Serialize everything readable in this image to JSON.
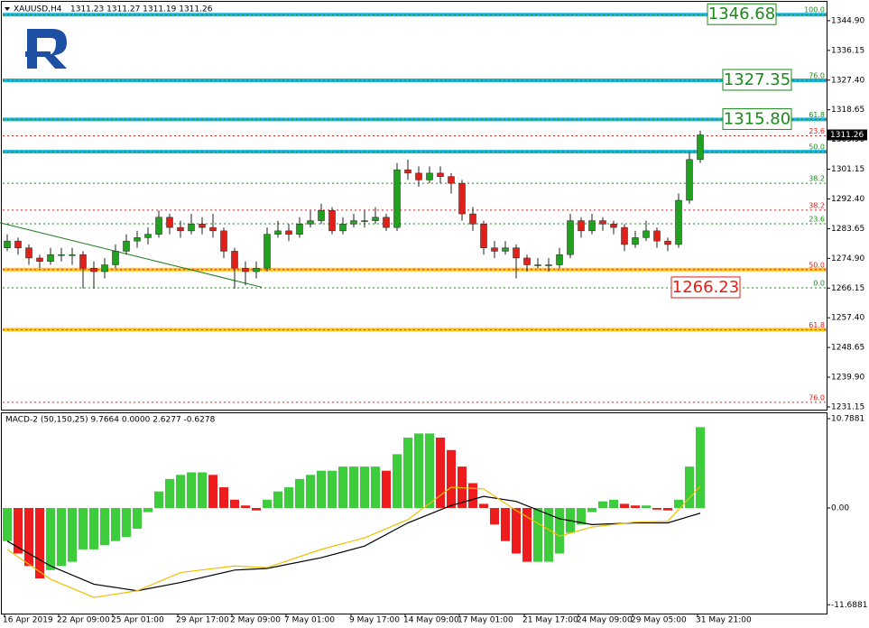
{
  "chart_data": [
    {
      "type": "candlestick",
      "title": "XAUUSD,H4",
      "subtitle": "1311.23 1311.27 1311.19 1311.26",
      "open": [
        1278,
        1280,
        1278,
        1275,
        1274,
        1276,
        1276,
        1276,
        1272,
        1271,
        1273,
        1277,
        1280,
        1281,
        1282,
        1287,
        1284,
        1283,
        1285,
        1284,
        1283,
        1277,
        1272,
        1271,
        1272,
        1282,
        1283,
        1282,
        1285,
        1286,
        1289,
        1283,
        1285,
        1286,
        1286,
        1287,
        1284,
        1301,
        1300,
        1298,
        1300,
        1299,
        1297,
        1288,
        1285,
        1278,
        1277,
        1278,
        1275,
        1273,
        1273,
        1273,
        1276,
        1286,
        1283,
        1286,
        1285,
        1284,
        1279,
        1281,
        1283,
        1280,
        1279,
        1292,
        1304
      ],
      "high": [
        1282,
        1281,
        1279,
        1276,
        1278,
        1278,
        1278,
        1277,
        1274,
        1275,
        1279,
        1282,
        1283,
        1284,
        1289,
        1288,
        1286,
        1288,
        1287,
        1288,
        1284,
        1278,
        1274,
        1274,
        1284,
        1286,
        1285,
        1287,
        1289,
        1291,
        1290,
        1287,
        1288,
        1289,
        1290,
        1288,
        1303,
        1304,
        1302,
        1302,
        1302,
        1300,
        1298,
        1290,
        1286,
        1280,
        1280,
        1279,
        1276,
        1275,
        1275,
        1278,
        1288,
        1287,
        1288,
        1287,
        1286,
        1285,
        1283,
        1286,
        1284,
        1281,
        1294,
        1306,
        1312.5
      ],
      "low": [
        1277,
        1276,
        1273,
        1272,
        1273,
        1274,
        1273,
        1266,
        1266,
        1269,
        1272,
        1276,
        1278,
        1279,
        1281,
        1282,
        1281,
        1282,
        1282,
        1281,
        1275,
        1266,
        1267,
        1269,
        1271,
        1281,
        1280,
        1281,
        1284,
        1285,
        1282,
        1282,
        1284,
        1284,
        1285,
        1283,
        1283,
        1298,
        1296,
        1297,
        1297,
        1294,
        1286,
        1283,
        1276,
        1275,
        1276,
        1269,
        1271,
        1272,
        1271,
        1272,
        1275,
        1281,
        1282,
        1283,
        1282,
        1277,
        1278,
        1280,
        1278,
        1277,
        1278,
        1291,
        1303
      ],
      "close": [
        1280,
        1278,
        1275,
        1274,
        1276,
        1276,
        1276,
        1272,
        1271,
        1273,
        1277,
        1280,
        1281,
        1282,
        1287,
        1284,
        1283,
        1285,
        1284,
        1283,
        1277,
        1272,
        1271,
        1272,
        1282,
        1283,
        1282,
        1285,
        1286,
        1289,
        1283,
        1285,
        1286,
        1286,
        1287,
        1284,
        1301,
        1300,
        1298,
        1300,
        1299,
        1297,
        1288,
        1285,
        1278,
        1277,
        1278,
        1275,
        1273,
        1273,
        1273,
        1276,
        1286,
        1283,
        1286,
        1285,
        1284,
        1279,
        1281,
        1283,
        1280,
        1279,
        1292,
        1304,
        1311.26
      ],
      "up_color": "#1fa31f",
      "down_color": "#e0201a",
      "ylim": [
        1230.08,
        1350.46
      ],
      "yticks": [
        {
          "value": 1344.9,
          "label": "1344.90"
        },
        {
          "value": 1336.15,
          "label": "1336.15"
        },
        {
          "value": 1327.4,
          "label": "1327.40"
        },
        {
          "value": 1318.65,
          "label": "1318.65"
        },
        {
          "value": 1309.9,
          "label": "1309.90"
        },
        {
          "value": 1301.15,
          "label": "1301.15"
        },
        {
          "value": 1292.4,
          "label": "1292.40"
        },
        {
          "value": 1283.65,
          "label": "1283.65"
        },
        {
          "value": 1274.9,
          "label": "1274.90"
        },
        {
          "value": 1266.15,
          "label": "1266.15"
        },
        {
          "value": 1257.4,
          "label": "1257.40"
        },
        {
          "value": 1248.65,
          "label": "1248.65"
        },
        {
          "value": 1239.9,
          "label": "1239.90"
        },
        {
          "value": 1231.15,
          "label": "1231.15"
        }
      ],
      "levels": [
        {
          "label": "100.0",
          "value": 1346.68,
          "color": "#1a8a1a"
        },
        {
          "label": "76.0",
          "value": 1327.35,
          "color": "#1a8a1a"
        },
        {
          "label": "61.8",
          "value": 1315.8,
          "color": "#1a8a1a"
        },
        {
          "label": "50.0",
          "value": 1306.3,
          "color": "#1a8a1a"
        },
        {
          "label": "38.2",
          "value": 1297.0,
          "color": "#1a8a1a"
        },
        {
          "label": "23.6",
          "value": 1285.1,
          "color": "#1a8a1a"
        },
        {
          "label": "0.0",
          "value": 1266.23,
          "color": "#1a8a1a"
        },
        {
          "label": "23.6",
          "value": 1311.0,
          "color": "#e0201a"
        },
        {
          "label": "38.2",
          "value": 1289.1,
          "color": "#e0201a"
        },
        {
          "label": "50.0",
          "value": 1271.6,
          "color": "#e0201a"
        },
        {
          "label": "61.8",
          "value": 1253.9,
          "color": "#e0201a"
        },
        {
          "label": "76.0",
          "value": 1232.5,
          "color": "#e0201a"
        }
      ],
      "bands": [
        {
          "value": 1346.68,
          "color": "#19b4e6"
        },
        {
          "value": 1327.35,
          "color": "#19b4e6"
        },
        {
          "value": 1315.8,
          "color": "#19b4e6"
        },
        {
          "value": 1306.3,
          "color": "#19b4e6"
        },
        {
          "value": 1271.6,
          "color": "#ffc61a"
        },
        {
          "value": 1253.9,
          "color": "#ffc61a"
        }
      ],
      "price_labels": [
        {
          "value": 1346.68,
          "label": "1346.68",
          "color": "#1a8a1a"
        },
        {
          "value": 1327.35,
          "label": "1327.35",
          "color": "#1a8a1a"
        },
        {
          "value": 1315.8,
          "label": "1315.80",
          "color": "#1a8a1a"
        },
        {
          "value": 1266.23,
          "label": "1266.23",
          "color": "#e0201a"
        }
      ],
      "last_price": 1311.26,
      "trendline": {
        "index": [
          -0.67,
          23.5
        ],
        "values": [
          1285.4,
          1266.4
        ],
        "color": "#1a7a1a"
      }
    },
    {
      "type": "macd",
      "title": "MACD-2 (50,150,25) 9.7664 0.0000 2.6277 -0.6278",
      "values": [
        -4,
        -5.5,
        -7,
        -8.5,
        -7.5,
        -7,
        -6.5,
        -5,
        -5,
        -4.5,
        -4,
        -3.5,
        -2.5,
        -0.5,
        2,
        3.5,
        4,
        4.3,
        4.3,
        4,
        2.5,
        1,
        0.3,
        -0.3,
        1,
        2,
        2.5,
        3.5,
        4,
        4.5,
        4.5,
        5,
        5,
        5,
        5,
        4.5,
        6.5,
        8.5,
        9,
        9,
        8.5,
        7,
        5,
        3,
        0.5,
        -2,
        -4,
        -5.5,
        -6.5,
        -6.5,
        -6.5,
        -5.5,
        -3,
        -2,
        -0.5,
        0.8,
        1,
        0.5,
        0.3,
        0.3,
        -0.2,
        -0.3,
        1,
        5,
        9.7664
      ],
      "up_color": "#3ccc3c",
      "down_color": "#ee1c1c",
      "lines": [
        {
          "color": "#000000",
          "index": [
            0,
            4,
            8,
            12,
            16,
            21,
            24,
            29,
            33,
            37,
            41,
            44,
            47,
            51,
            54,
            58,
            61,
            64
          ],
          "values": [
            -4,
            -7,
            -9.2,
            -10,
            -9,
            -7.5,
            -7.3,
            -6,
            -4.6,
            -1.8,
            0.3,
            1.4,
            0.8,
            -1.3,
            -2,
            -1.8,
            -1.8,
            -0.6278
          ]
        },
        {
          "color": "#f0c000",
          "index": [
            0,
            4,
            8,
            12,
            16,
            21,
            24,
            29,
            33,
            37,
            41,
            44,
            47,
            51,
            54,
            58,
            61,
            64
          ],
          "values": [
            -5,
            -8.6,
            -10.8,
            -10,
            -7.8,
            -7,
            -7.2,
            -5,
            -3.6,
            -1.4,
            2.5,
            2.3,
            -0.3,
            -3.4,
            -2.3,
            -1.7,
            -1.6,
            2.6277
          ]
        }
      ],
      "ylim": [
        -12.75,
        11.44
      ],
      "yticks": [
        10.7881,
        {
          "value": 0,
          "label": "0.00"
        },
        -11.6881
      ],
      "xticks": [
        {
          "value": 0,
          "label": "16 Apr 2019"
        },
        {
          "value": 5,
          "label": "22 Apr 09:00"
        },
        {
          "value": 10,
          "label": "25 Apr 01:00"
        },
        {
          "value": 16,
          "label": "29 Apr 17:00"
        },
        {
          "value": 21,
          "label": "2 May 09:00"
        },
        {
          "value": 26,
          "label": "7 May 01:00"
        },
        {
          "value": 32,
          "label": "9 May 17:00"
        },
        {
          "value": 37,
          "label": "14 May 09:00"
        },
        {
          "value": 42,
          "label": "17 May 01:00"
        },
        {
          "value": 48,
          "label": "21 May 17:00"
        },
        {
          "value": 53,
          "label": "24 May 09:00"
        },
        {
          "value": 58,
          "label": "29 May 05:00"
        },
        {
          "value": 64,
          "label": "31 May 21:00"
        }
      ]
    }
  ]
}
